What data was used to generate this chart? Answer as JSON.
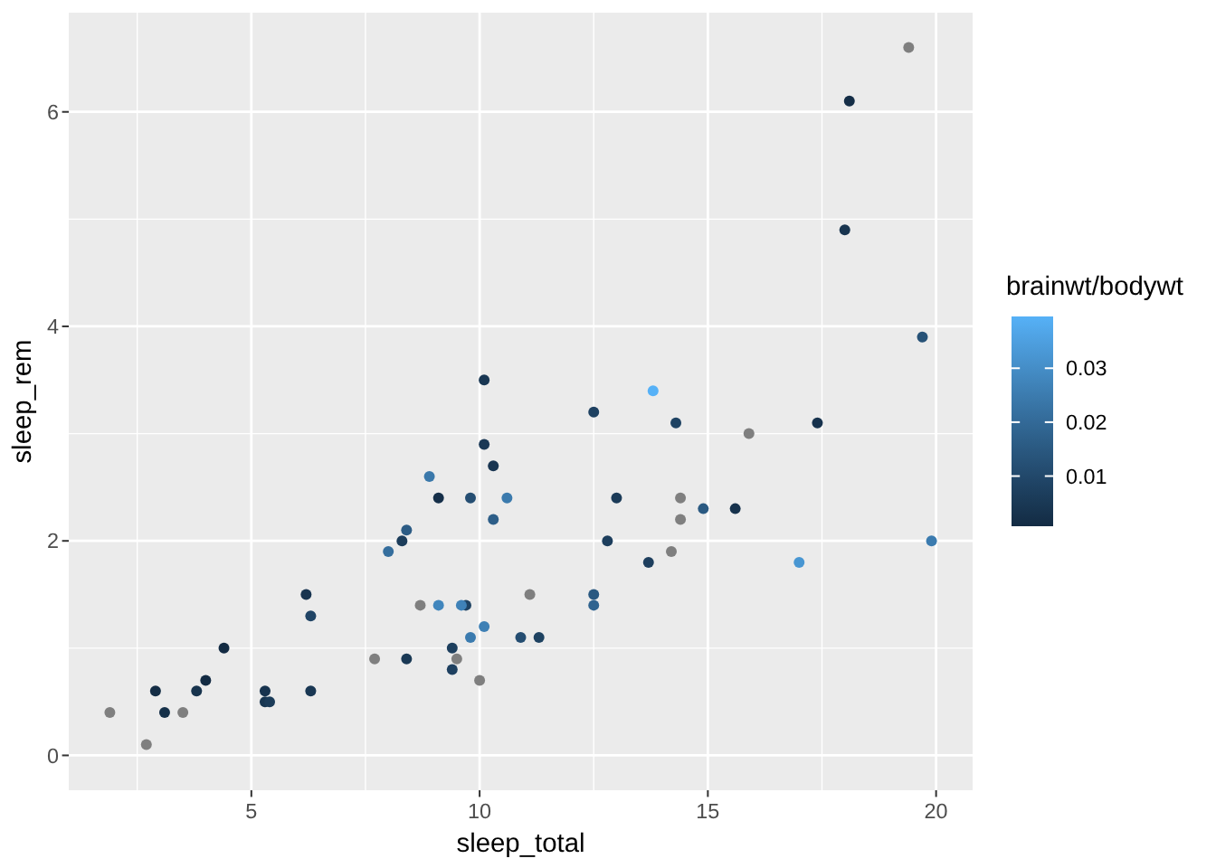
{
  "chart_data": {
    "type": "scatter",
    "xlabel": "sleep_total",
    "ylabel": "sleep_rem",
    "clabel": "brainwt/bodywt",
    "x": [
      17.0,
      14.4,
      14.9,
      4.0,
      14.4,
      8.7,
      10.1,
      5.3,
      9.4,
      10.0,
      12.5,
      10.3,
      8.3,
      9.1,
      17.4,
      5.3,
      18.0,
      19.7,
      2.9,
      3.1,
      10.1,
      10.9,
      12.5,
      9.8,
      1.9,
      2.7,
      6.2,
      6.3,
      8.0,
      9.5,
      19.4,
      10.1,
      14.2,
      14.3,
      12.5,
      19.9,
      7.7,
      8.4,
      3.8,
      9.7,
      9.4,
      10.3,
      13.7,
      3.5,
      11.1,
      18.1,
      5.4,
      13.0,
      9.6,
      8.4,
      11.3,
      10.6,
      13.8,
      15.9,
      12.8,
      9.1,
      4.4,
      15.6,
      8.9,
      6.3,
      9.8
    ],
    "values": [
      1.8,
      2.4,
      2.3,
      0.7,
      2.2,
      1.4,
      2.9,
      0.6,
      0.8,
      0.7,
      1.5,
      2.2,
      2.0,
      1.4,
      3.1,
      0.5,
      4.9,
      3.9,
      0.6,
      0.4,
      3.5,
      1.1,
      3.2,
      1.1,
      0.4,
      0.1,
      1.5,
      0.6,
      1.9,
      0.9,
      6.6,
      1.2,
      1.9,
      3.1,
      1.4,
      2.0,
      0.9,
      0.9,
      0.6,
      1.4,
      1.0,
      2.7,
      1.8,
      0.4,
      1.5,
      6.1,
      0.5,
      2.4,
      1.4,
      2.1,
      1.1,
      2.4,
      3.4,
      3.0,
      2.0,
      2.4,
      1.0,
      2.3,
      2.6,
      1.3,
      2.4
    ],
    "cvalues": [
      0.0323,
      null,
      0.0153,
      0.0007,
      null,
      null,
      0.005,
      0.0034,
      0.0076,
      null,
      0.0152,
      0.0167,
      0.0066,
      0.028,
      0.0031,
      0.0042,
      0.0037,
      0.013,
      0.0013,
      0.0022,
      0.0045,
      0.0115,
      0.0078,
      0.025,
      null,
      null,
      0.0038,
      0.0047,
      0.0213,
      null,
      null,
      0.0263,
      null,
      0.0083,
      0.0182,
      0.025,
      null,
      0.0048,
      0.0032,
      0.0084,
      0.0071,
      0.0044,
      0.007,
      null,
      null,
      0.0014,
      0.0058,
      0.0059,
      0.0269,
      0.016,
      0.008,
      0.0246,
      0.0396,
      null,
      0.0069,
      0.0021,
      0.0008,
      0.0029,
      0.024,
      0.0088,
      0.0119
    ],
    "clim": [
      0.0007,
      0.0396
    ],
    "cticks": [
      0.01,
      0.02,
      0.03
    ],
    "xlim": [
      1.0,
      20.8
    ],
    "xticks": [
      5,
      10,
      15,
      20
    ],
    "ylim": [
      -0.325,
      6.925
    ],
    "yticks": [
      0,
      2,
      4,
      6
    ],
    "grid": true,
    "marker": "circle"
  }
}
